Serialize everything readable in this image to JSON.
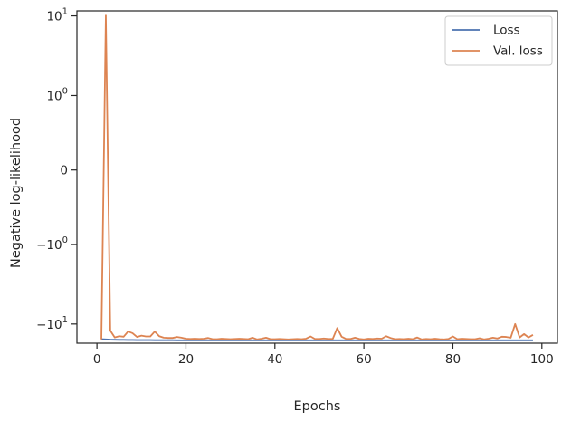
{
  "chart_data": {
    "type": "line",
    "xlabel": "Epochs",
    "ylabel": "Negative log-likelihood",
    "y_scale": "symlog",
    "y_tick_labels": [
      {
        "base": "10",
        "exp": "1",
        "sign": ""
      },
      {
        "base": "10",
        "exp": "0",
        "sign": ""
      },
      {
        "plain": "0"
      },
      {
        "base": "10",
        "exp": "0",
        "sign": "−"
      },
      {
        "base": "10",
        "exp": "1",
        "sign": "−"
      }
    ],
    "y_tick_values": [
      10,
      1,
      0,
      -1,
      -10
    ],
    "x_ticks": [
      0,
      20,
      40,
      60,
      80,
      100
    ],
    "x_tick_labels": [
      "0",
      "20",
      "40",
      "60",
      "80",
      "100"
    ],
    "xlim": [
      -4.5,
      103.5
    ],
    "ylim": [
      -17,
      11.5
    ],
    "grid": false,
    "legend_position": "top-right",
    "colors": {
      "loss": "#4c72b0",
      "val_loss": "#dd8452"
    },
    "x": [
      1,
      2,
      3,
      4,
      5,
      6,
      7,
      8,
      9,
      10,
      11,
      12,
      13,
      14,
      15,
      16,
      17,
      18,
      19,
      20,
      21,
      22,
      23,
      24,
      25,
      26,
      27,
      28,
      29,
      30,
      31,
      32,
      33,
      34,
      35,
      36,
      37,
      38,
      39,
      40,
      41,
      42,
      43,
      44,
      45,
      46,
      47,
      48,
      49,
      50,
      51,
      52,
      53,
      54,
      55,
      56,
      57,
      58,
      59,
      60,
      61,
      62,
      63,
      64,
      65,
      66,
      67,
      68,
      69,
      70,
      71,
      72,
      73,
      74,
      75,
      76,
      77,
      78,
      79,
      80,
      81,
      82,
      83,
      84,
      85,
      86,
      87,
      88,
      89,
      90,
      91,
      92,
      93,
      94,
      95,
      96,
      97,
      98
    ],
    "series": [
      {
        "name": "Loss",
        "values": [
          -15.2,
          -15.3,
          -15.4,
          -15.45,
          -15.5,
          -15.5,
          -15.55,
          -15.55,
          -15.6,
          -15.6,
          -15.6,
          -15.6,
          -15.65,
          -15.65,
          -15.65,
          -15.65,
          -15.65,
          -15.7,
          -15.7,
          -15.7,
          -15.7,
          -15.7,
          -15.7,
          -15.7,
          -15.7,
          -15.7,
          -15.7,
          -15.7,
          -15.7,
          -15.7,
          -15.7,
          -15.7,
          -15.7,
          -15.7,
          -15.7,
          -15.7,
          -15.7,
          -15.7,
          -15.7,
          -15.7,
          -15.7,
          -15.7,
          -15.7,
          -15.7,
          -15.7,
          -15.7,
          -15.7,
          -15.7,
          -15.7,
          -15.7,
          -15.7,
          -15.7,
          -15.7,
          -15.7,
          -15.7,
          -15.7,
          -15.7,
          -15.7,
          -15.7,
          -15.7,
          -15.7,
          -15.7,
          -15.7,
          -15.7,
          -15.7,
          -15.7,
          -15.7,
          -15.7,
          -15.7,
          -15.7,
          -15.7,
          -15.7,
          -15.7,
          -15.7,
          -15.7,
          -15.7,
          -15.7,
          -15.7,
          -15.7,
          -15.7,
          -15.7,
          -15.7,
          -15.7,
          -15.7,
          -15.7,
          -15.7,
          -15.7,
          -15.7,
          -15.7,
          -15.7,
          -15.7,
          -15.7,
          -15.7,
          -15.7,
          -15.7,
          -15.7,
          -15.7,
          -15.7
        ]
      },
      {
        "name": "Val. loss",
        "values": [
          -15.3,
          10.1,
          -12.0,
          -14.5,
          -14.0,
          -14.2,
          -12.3,
          -12.9,
          -14.3,
          -13.8,
          -14.1,
          -14.1,
          -12.3,
          -14.0,
          -14.6,
          -14.7,
          -14.7,
          -14.3,
          -14.6,
          -15.0,
          -15.1,
          -15.0,
          -15.1,
          -15.0,
          -14.7,
          -15.2,
          -15.2,
          -15.0,
          -15.1,
          -15.2,
          -15.1,
          -15.0,
          -15.1,
          -15.2,
          -14.6,
          -15.3,
          -15.0,
          -14.6,
          -15.2,
          -15.2,
          -15.1,
          -15.2,
          -15.3,
          -15.2,
          -15.1,
          -15.2,
          -15.0,
          -14.1,
          -15.1,
          -15.1,
          -14.9,
          -15.1,
          -15.1,
          -11.2,
          -14.2,
          -15.1,
          -15.1,
          -14.6,
          -15.1,
          -15.3,
          -15.0,
          -15.1,
          -14.9,
          -15.0,
          -14.0,
          -14.7,
          -15.2,
          -15.1,
          -15.2,
          -15.0,
          -15.2,
          -14.5,
          -15.3,
          -15.1,
          -15.2,
          -15.0,
          -15.2,
          -15.3,
          -15.1,
          -14.1,
          -15.2,
          -15.0,
          -15.1,
          -15.2,
          -15.2,
          -14.8,
          -15.3,
          -15.0,
          -14.6,
          -14.9,
          -14.2,
          -14.3,
          -14.6,
          -10.0,
          -14.5,
          -13.2,
          -14.5,
          -13.5
        ]
      }
    ]
  }
}
